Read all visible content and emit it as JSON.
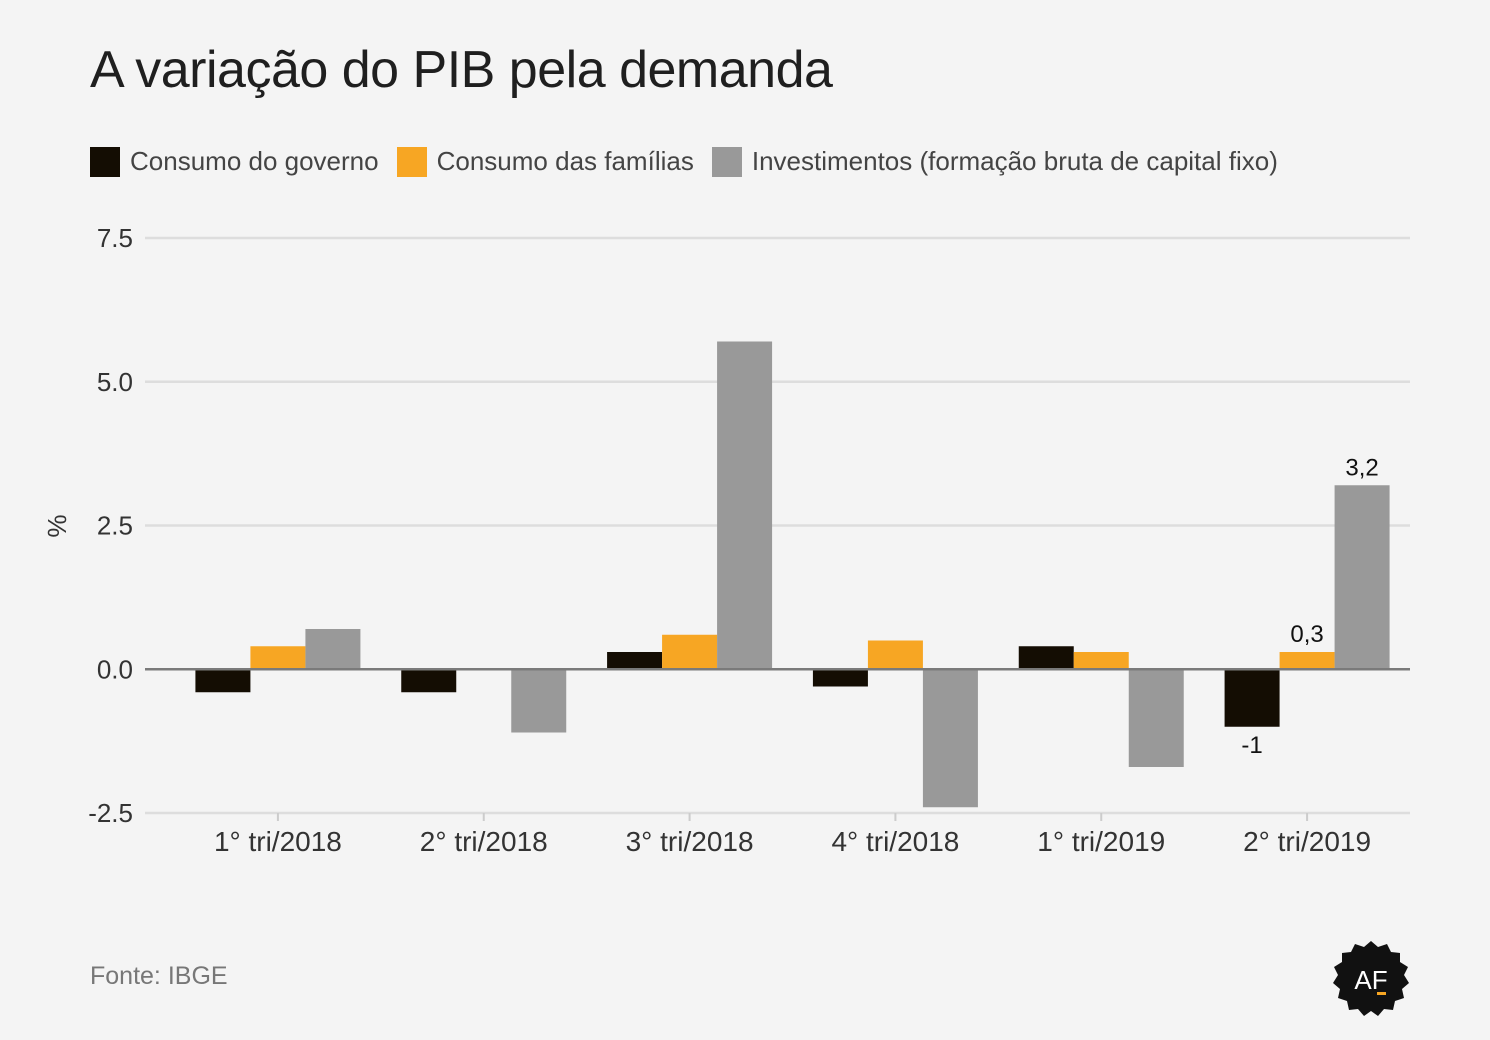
{
  "title": "A variação do PIB pela demanda",
  "source": "Fonte: IBGE",
  "logo_text": "AF",
  "colors": {
    "governo": "#140d03",
    "familias": "#f7a623",
    "investimentos": "#999999",
    "grid": "#dddddd",
    "zero": "#7a7a7a"
  },
  "chart_data": {
    "type": "bar",
    "title": "A variação do PIB pela demanda",
    "xlabel": "",
    "ylabel": "%",
    "ylim": [
      -2.5,
      7.5
    ],
    "yticks": [
      -2.5,
      0.0,
      2.5,
      5.0,
      7.5
    ],
    "ytick_labels": [
      "-2.5",
      "0.0",
      "2.5",
      "5.0",
      "7.5"
    ],
    "grid": true,
    "legend_position": "top-left",
    "categories": [
      "1° tri/2018",
      "2° tri/2018",
      "3° tri/2018",
      "4° tri/2018",
      "1° tri/2019",
      "2° tri/2019"
    ],
    "series": [
      {
        "name": "Consumo do governo",
        "color_key": "governo",
        "values": [
          -0.4,
          -0.4,
          0.3,
          -0.3,
          0.4,
          -1.0
        ]
      },
      {
        "name": "Consumo das famílias",
        "color_key": "familias",
        "values": [
          0.4,
          0.0,
          0.6,
          0.5,
          0.3,
          0.3
        ]
      },
      {
        "name": "Investimentos (formação bruta de capital fixo)",
        "color_key": "investimentos",
        "values": [
          0.7,
          -1.1,
          5.7,
          -2.4,
          -1.7,
          3.2
        ]
      }
    ],
    "annotations": [
      {
        "series": 0,
        "category": 5,
        "text": "-1"
      },
      {
        "series": 1,
        "category": 5,
        "text": "0,3"
      },
      {
        "series": 2,
        "category": 5,
        "text": "3,2"
      }
    ]
  }
}
